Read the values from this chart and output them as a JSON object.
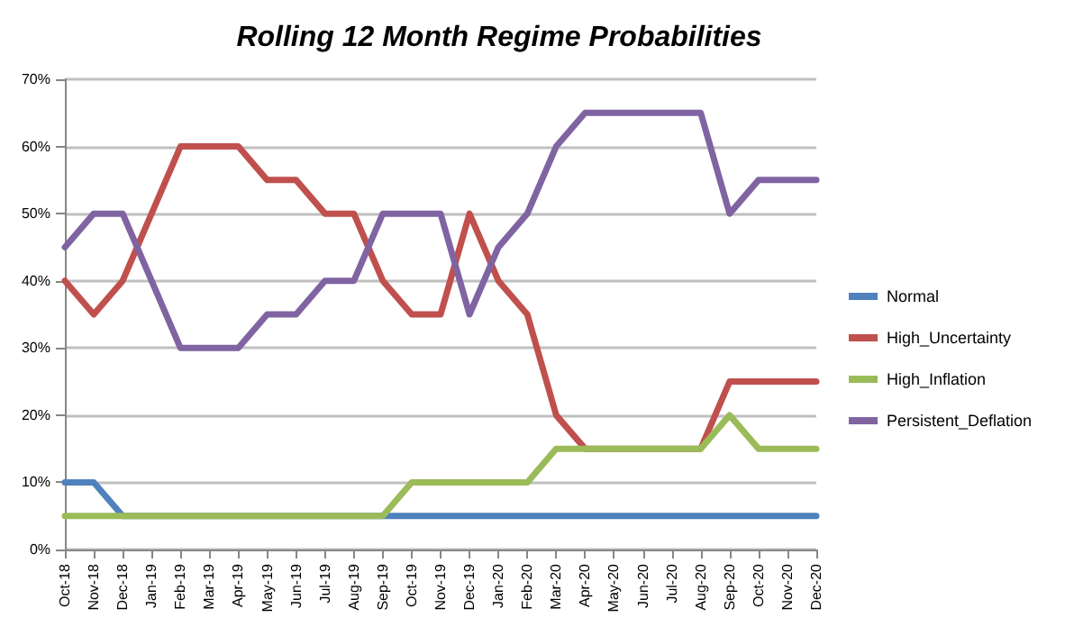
{
  "chart_data": {
    "type": "line",
    "title": "Rolling 12 Month Regime Probabilities",
    "categories": [
      "Oct-18",
      "Nov-18",
      "Dec-18",
      "Jan-19",
      "Feb-19",
      "Mar-19",
      "Apr-19",
      "May-19",
      "Jun-19",
      "Jul-19",
      "Aug-19",
      "Sep-19",
      "Oct-19",
      "Nov-19",
      "Dec-19",
      "Jan-20",
      "Feb-20",
      "Mar-20",
      "Apr-20",
      "May-20",
      "Jun-20",
      "Jul-20",
      "Aug-20",
      "Sep-20",
      "Oct-20",
      "Nov-20",
      "Dec-20"
    ],
    "series": [
      {
        "name": "Normal",
        "color": "#4f81bd",
        "values": [
          10,
          10,
          5,
          5,
          5,
          5,
          5,
          5,
          5,
          5,
          5,
          5,
          5,
          5,
          5,
          5,
          5,
          5,
          5,
          5,
          5,
          5,
          5,
          5,
          5,
          5,
          5
        ]
      },
      {
        "name": "High_Uncertainty",
        "color": "#c0504d",
        "values": [
          40,
          35,
          40,
          50,
          60,
          60,
          60,
          55,
          55,
          50,
          50,
          40,
          35,
          35,
          50,
          40,
          35,
          20,
          15,
          15,
          15,
          15,
          15,
          25,
          25,
          25,
          25
        ]
      },
      {
        "name": "High_Inflation",
        "color": "#9bbb59",
        "values": [
          5,
          5,
          5,
          5,
          5,
          5,
          5,
          5,
          5,
          5,
          5,
          5,
          10,
          10,
          10,
          10,
          10,
          15,
          15,
          15,
          15,
          15,
          15,
          20,
          15,
          15,
          15
        ]
      },
      {
        "name": "Persistent_Deflation",
        "color": "#8064a2",
        "values": [
          45,
          50,
          50,
          40,
          30,
          30,
          30,
          35,
          35,
          40,
          40,
          50,
          50,
          50,
          35,
          45,
          50,
          60,
          65,
          65,
          65,
          65,
          65,
          50,
          55,
          55,
          55
        ]
      }
    ],
    "ylim": [
      0,
      70
    ],
    "yticks": [
      {
        "value": 0,
        "label": "0%"
      },
      {
        "value": 10,
        "label": "10%"
      },
      {
        "value": 20,
        "label": "20%"
      },
      {
        "value": 30,
        "label": "30%"
      },
      {
        "value": 40,
        "label": "40%"
      },
      {
        "value": 50,
        "label": "50%"
      },
      {
        "value": 60,
        "label": "60%"
      },
      {
        "value": 70,
        "label": "70%"
      }
    ],
    "grid": "y",
    "legend": "right",
    "marker": "none",
    "line_style": "solid"
  }
}
